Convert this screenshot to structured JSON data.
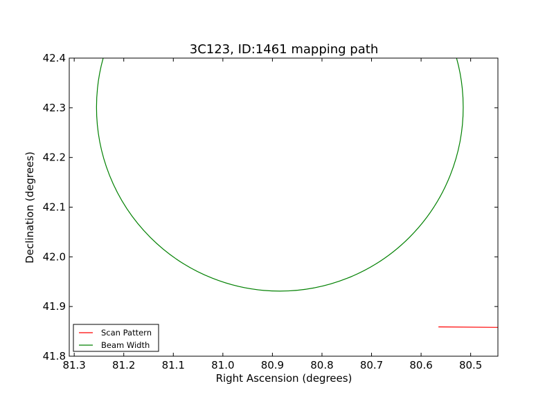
{
  "chart_data": {
    "type": "line",
    "title": "3C123, ID:1461 mapping path",
    "xlabel": "Right Ascension (degrees)",
    "ylabel": "Declination (degrees)",
    "xlim": [
      81.31,
      80.445
    ],
    "ylim": [
      41.8,
      42.4
    ],
    "x_inverted": true,
    "xticks": [
      81.3,
      81.2,
      81.1,
      81.0,
      80.9,
      80.8,
      80.7,
      80.6,
      80.5
    ],
    "xtick_labels": [
      "81.3",
      "81.2",
      "81.1",
      "81.0",
      "80.9",
      "80.8",
      "80.7",
      "80.6",
      "80.5"
    ],
    "yticks": [
      41.8,
      41.9,
      42.0,
      42.1,
      42.2,
      42.3,
      42.4
    ],
    "ytick_labels": [
      "41.8",
      "41.9",
      "42.0",
      "42.1",
      "42.2",
      "42.3",
      "42.4"
    ],
    "grid": false,
    "legend": {
      "position": "lower-left"
    },
    "series": [
      {
        "name": "Scan Pattern",
        "color": "#ff0000",
        "x": [
          80.565,
          80.445
        ],
        "y": [
          41.859,
          41.858
        ]
      },
      {
        "name": "Beam Width",
        "color": "#008000",
        "shape": "circle",
        "center": [
          80.885,
          42.301
        ],
        "radius": 0.37
      }
    ]
  }
}
